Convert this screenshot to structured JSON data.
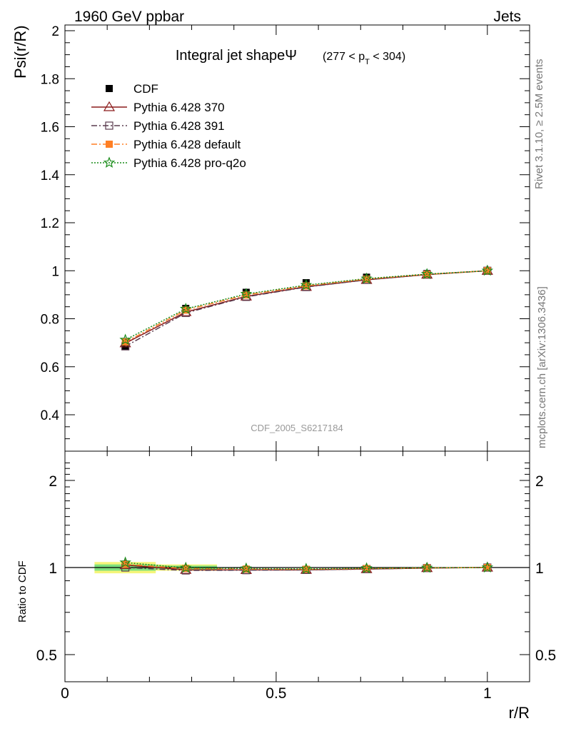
{
  "header": {
    "left": "1960 GeV ppbar",
    "right": "Jets"
  },
  "side_text": {
    "rivet": "Rivet 3.1.10, ≥ 2.5M events",
    "mcplots": "mcplots.cern.ch [arXiv:1306.3436]"
  },
  "watermark": "CDF_2005_S6217184",
  "chart_data": [
    {
      "type": "line",
      "title": "Integral jet shapeΨ",
      "title_range": "(277 < p_T < 304)",
      "ylabel": "Psi(r/R)",
      "xlabel": "r/R",
      "xlim": [
        0,
        1.1
      ],
      "ylim": [
        0.25,
        2.05
      ],
      "y_ticks": [
        "0.4",
        "0.6",
        "0.8",
        "1",
        "1.2",
        "1.4",
        "1.6",
        "1.8",
        "2"
      ],
      "legend_placement": "top-left",
      "x": [
        0.143,
        0.286,
        0.429,
        0.571,
        0.714,
        0.857,
        1.0
      ],
      "series": [
        {
          "name": "CDF",
          "color": "#000000",
          "marker": "filled-square",
          "style": "points",
          "values": [
            0.685,
            0.843,
            0.91,
            0.95,
            0.973,
            0.988,
            1.0
          ]
        },
        {
          "name": "Pythia 6.428 370",
          "color": "#8b1a1a",
          "marker": "open-triangle",
          "style": "solid",
          "values": [
            0.698,
            0.828,
            0.893,
            0.933,
            0.962,
            0.984,
            1.0
          ]
        },
        {
          "name": "Pythia 6.428 391",
          "color": "#5a3b4e",
          "marker": "open-square",
          "style": "dashdot",
          "values": [
            0.685,
            0.824,
            0.891,
            0.932,
            0.962,
            0.984,
            1.0
          ]
        },
        {
          "name": "Pythia 6.428 default",
          "color": "#ff7f24",
          "marker": "filled-square",
          "style": "dashdot",
          "values": [
            0.703,
            0.836,
            0.899,
            0.937,
            0.965,
            0.985,
            1.0
          ]
        },
        {
          "name": "Pythia 6.428 pro-q2o",
          "color": "#1a8c1a",
          "marker": "open-star",
          "style": "dotted",
          "values": [
            0.712,
            0.841,
            0.903,
            0.94,
            0.967,
            0.986,
            1.0
          ]
        }
      ]
    },
    {
      "type": "line",
      "ylabel": "Ratio to CDF",
      "xlabel": "r/R",
      "xlim": [
        0,
        1.1
      ],
      "ylim": [
        0.35,
        2.4
      ],
      "log_y": true,
      "y_ticks": [
        "0.5",
        "1",
        "2"
      ],
      "x_ticks": [
        "0",
        "0.5",
        "1"
      ],
      "x": [
        0.143,
        0.286,
        0.429,
        0.571,
        0.714,
        0.857,
        1.0
      ],
      "band": {
        "color_inner": "#7ee07e",
        "color_outer": "#f5f57a",
        "x_ranges": [
          [
            0.07,
            0.215
          ],
          [
            0.215,
            0.36
          ]
        ],
        "inner": [
          [
            0.975,
            1.025
          ],
          [
            0.985,
            1.015
          ]
        ],
        "outer": [
          [
            0.955,
            1.045
          ],
          [
            0.975,
            1.025
          ]
        ]
      },
      "series": [
        {
          "name": "Pythia 6.428 370",
          "color": "#8b1a1a",
          "marker": "open-triangle",
          "style": "solid",
          "values": [
            1.02,
            0.982,
            0.981,
            0.982,
            0.988,
            0.996,
            1.0
          ]
        },
        {
          "name": "Pythia 6.428 391",
          "color": "#5a3b4e",
          "marker": "open-square",
          "style": "dashdot",
          "values": [
            1.0,
            0.977,
            0.979,
            0.981,
            0.988,
            0.996,
            1.0
          ]
        },
        {
          "name": "Pythia 6.428 default",
          "color": "#ff7f24",
          "marker": "filled-square",
          "style": "dashdot",
          "values": [
            1.026,
            0.992,
            0.988,
            0.986,
            0.992,
            0.997,
            1.0
          ]
        },
        {
          "name": "Pythia 6.428 pro-q2o",
          "color": "#1a8c1a",
          "marker": "open-star",
          "style": "dotted",
          "values": [
            1.04,
            0.998,
            0.992,
            0.989,
            0.994,
            0.998,
            1.0
          ]
        }
      ]
    }
  ]
}
